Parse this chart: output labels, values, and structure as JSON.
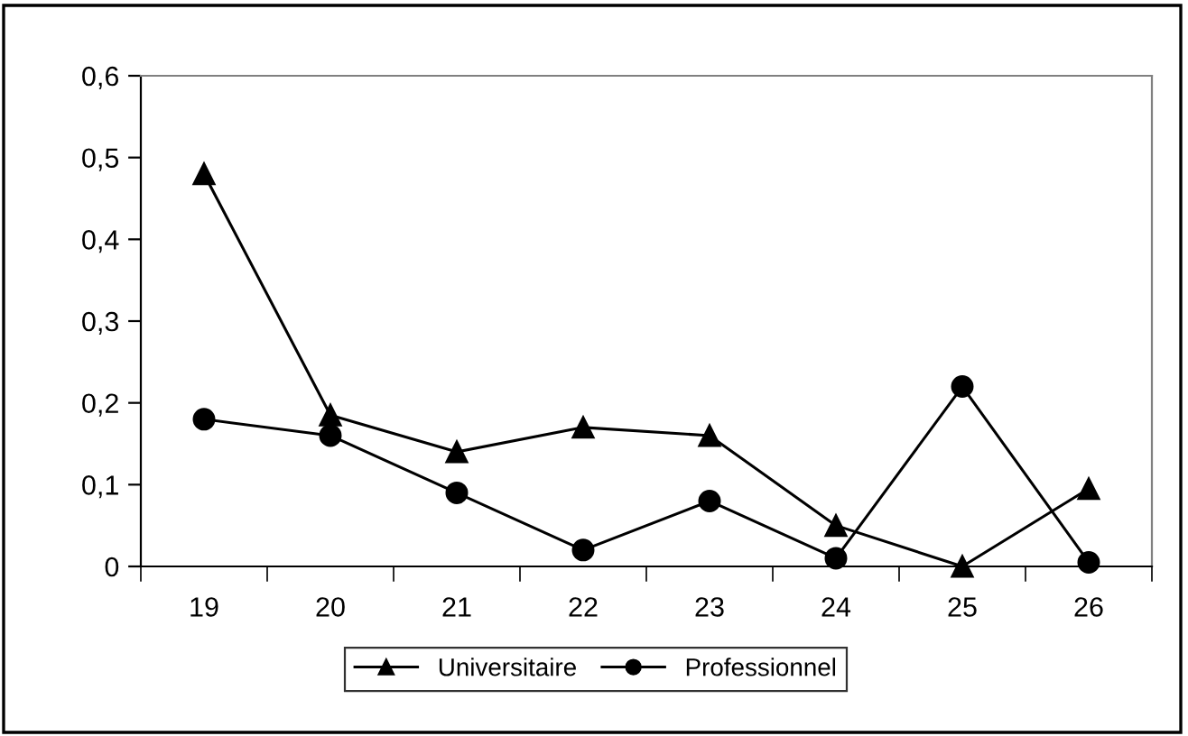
{
  "chart_data": {
    "type": "line",
    "categories": [
      "19",
      "20",
      "21",
      "22",
      "23",
      "24",
      "25",
      "26"
    ],
    "series": [
      {
        "name": "Universitaire",
        "color": "#000000",
        "marker": "triangle",
        "values": [
          0.48,
          0.185,
          0.14,
          0.17,
          0.16,
          0.05,
          0,
          0.095
        ]
      },
      {
        "name": "Professionnel",
        "color": "#000000",
        "marker": "circle",
        "values": [
          0.18,
          0.16,
          0.09,
          0.02,
          0.08,
          0.01,
          0.22,
          0.005
        ]
      }
    ],
    "ylim": [
      0,
      0.6
    ],
    "yticks": [
      0,
      {
        "value": 0.1,
        "label": "0,1"
      },
      {
        "value": 0.2,
        "label": "0,2"
      },
      {
        "value": 0.3,
        "label": "0,3"
      },
      {
        "value": 0.4,
        "label": "0,4"
      },
      {
        "value": 0.5,
        "label": "0,5"
      },
      {
        "value": 0.6,
        "label": "0,6"
      }
    ],
    "grid": false,
    "legend": "bottom",
    "line_style": "solid"
  }
}
